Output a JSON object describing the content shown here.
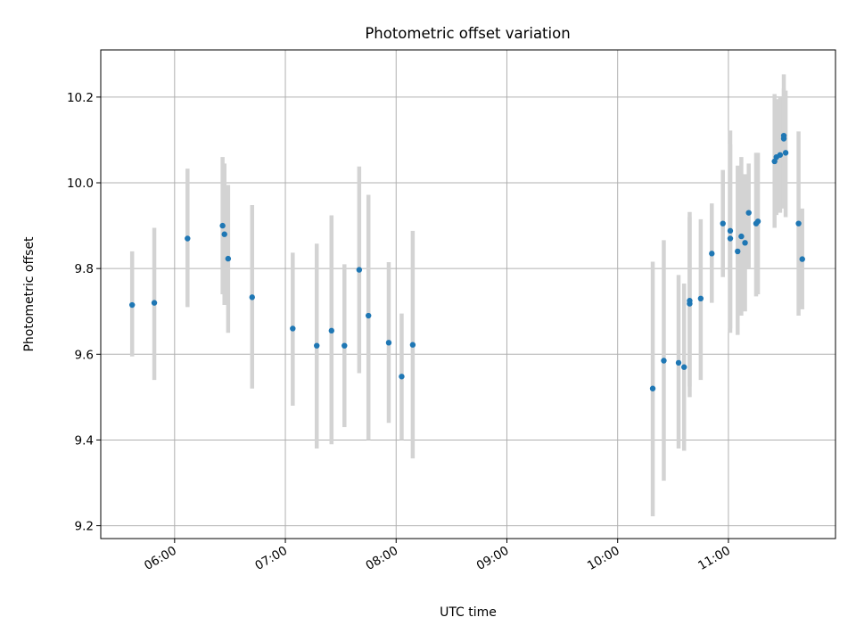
{
  "chart_data": {
    "type": "scatter",
    "title": "Photometric offset variation",
    "xlabel": "UTC time",
    "ylabel": "Photometric offset",
    "x_is_time": true,
    "xlim": [
      "05:20",
      "11:58"
    ],
    "ylim": [
      9.17,
      10.31
    ],
    "xticks": [
      "06:00",
      "07:00",
      "08:00",
      "09:00",
      "10:00",
      "11:00"
    ],
    "yticks": [
      "9.2",
      "9.4",
      "9.6",
      "9.8",
      "10.0",
      "10.2"
    ],
    "grid": true,
    "marker_color": "#1f77b4",
    "errorbar_color": "#d3d3d3",
    "points": [
      {
        "t": "05:37",
        "y": 9.715,
        "lo": 9.595,
        "hi": 9.84
      },
      {
        "t": "05:49",
        "y": 9.72,
        "lo": 9.54,
        "hi": 9.895
      },
      {
        "t": "06:07",
        "y": 9.87,
        "lo": 9.71,
        "hi": 10.033
      },
      {
        "t": "06:26",
        "y": 9.9,
        "lo": 9.74,
        "hi": 10.06
      },
      {
        "t": "06:27",
        "y": 9.88,
        "lo": 9.715,
        "hi": 10.045
      },
      {
        "t": "06:29",
        "y": 9.823,
        "lo": 9.65,
        "hi": 9.995
      },
      {
        "t": "06:42",
        "y": 9.733,
        "lo": 9.52,
        "hi": 9.948
      },
      {
        "t": "07:04",
        "y": 9.66,
        "lo": 9.48,
        "hi": 9.837
      },
      {
        "t": "07:17",
        "y": 9.62,
        "lo": 9.38,
        "hi": 9.858
      },
      {
        "t": "07:25",
        "y": 9.655,
        "lo": 9.39,
        "hi": 9.924
      },
      {
        "t": "07:32",
        "y": 9.62,
        "lo": 9.43,
        "hi": 9.81
      },
      {
        "t": "07:40",
        "y": 9.797,
        "lo": 9.556,
        "hi": 10.038
      },
      {
        "t": "07:45",
        "y": 9.69,
        "lo": 9.4,
        "hi": 9.972
      },
      {
        "t": "07:56",
        "y": 9.627,
        "lo": 9.44,
        "hi": 9.815
      },
      {
        "t": "08:03",
        "y": 9.548,
        "lo": 9.4,
        "hi": 9.695
      },
      {
        "t": "08:09",
        "y": 9.622,
        "lo": 9.357,
        "hi": 9.888
      },
      {
        "t": "10:19",
        "y": 9.52,
        "lo": 9.222,
        "hi": 9.816
      },
      {
        "t": "10:25",
        "y": 9.585,
        "lo": 9.305,
        "hi": 9.866
      },
      {
        "t": "10:33",
        "y": 9.58,
        "lo": 9.38,
        "hi": 9.785
      },
      {
        "t": "10:36",
        "y": 9.57,
        "lo": 9.375,
        "hi": 9.765
      },
      {
        "t": "10:39",
        "y": 9.718,
        "lo": 9.5,
        "hi": 9.932
      },
      {
        "t": "10:39",
        "y": 9.725,
        "lo": 9.525,
        "hi": 9.92
      },
      {
        "t": "10:45",
        "y": 9.73,
        "lo": 9.54,
        "hi": 9.915
      },
      {
        "t": "10:51",
        "y": 9.835,
        "lo": 9.72,
        "hi": 9.952
      },
      {
        "t": "10:57",
        "y": 9.905,
        "lo": 9.78,
        "hi": 10.03
      },
      {
        "t": "11:01",
        "y": 9.87,
        "lo": 9.65,
        "hi": 10.09
      },
      {
        "t": "11:01",
        "y": 9.888,
        "lo": 9.66,
        "hi": 10.122
      },
      {
        "t": "11:05",
        "y": 9.84,
        "lo": 9.645,
        "hi": 10.04
      },
      {
        "t": "11:07",
        "y": 9.875,
        "lo": 9.69,
        "hi": 10.06
      },
      {
        "t": "11:09",
        "y": 9.86,
        "lo": 9.7,
        "hi": 10.02
      },
      {
        "t": "11:11",
        "y": 9.93,
        "lo": 9.8,
        "hi": 10.045
      },
      {
        "t": "11:15",
        "y": 9.905,
        "lo": 9.735,
        "hi": 10.07
      },
      {
        "t": "11:16",
        "y": 9.91,
        "lo": 9.74,
        "hi": 10.07
      },
      {
        "t": "11:25",
        "y": 10.05,
        "lo": 9.895,
        "hi": 10.207
      },
      {
        "t": "11:26",
        "y": 10.06,
        "lo": 9.925,
        "hi": 10.195
      },
      {
        "t": "11:28",
        "y": 10.065,
        "lo": 9.93,
        "hi": 10.2
      },
      {
        "t": "11:30",
        "y": 10.11,
        "lo": 9.94,
        "hi": 10.253
      },
      {
        "t": "11:30",
        "y": 10.103,
        "lo": 9.985,
        "hi": 10.22
      },
      {
        "t": "11:31",
        "y": 10.07,
        "lo": 9.92,
        "hi": 10.215
      },
      {
        "t": "11:38",
        "y": 9.905,
        "lo": 9.69,
        "hi": 10.12
      },
      {
        "t": "11:40",
        "y": 9.822,
        "lo": 9.705,
        "hi": 9.94
      }
    ]
  }
}
